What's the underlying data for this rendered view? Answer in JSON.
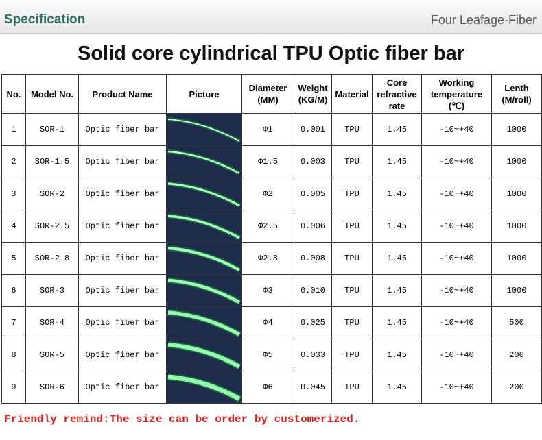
{
  "header": {
    "title": "Specification",
    "brand": "Four  Leafage-Fiber"
  },
  "title": "Solid core cylindrical TPU Optic fiber bar",
  "table": {
    "columns": [
      "No.",
      "Model No.",
      "Product Name",
      "Picture",
      "Diameter\n(MM)",
      "Weight\n(KG/M)",
      "Material",
      "Core\nrefractive\nrate",
      "Working\ntemperature\n(℃)",
      "Lenth\n(M/roll)"
    ],
    "rows": [
      [
        "1",
        "SOR-1",
        "Optic fiber bar",
        "Φ1",
        "0.001",
        "TPU",
        "1.45",
        "-10~+40",
        "1000"
      ],
      [
        "2",
        "SOR-1.5",
        "Optic fiber bar",
        "Φ1.5",
        "0.003",
        "TPU",
        "1.45",
        "-10~+40",
        "1000"
      ],
      [
        "3",
        "SOR-2",
        "Optic fiber bar",
        "Φ2",
        "0.005",
        "TPU",
        "1.45",
        "-10~+40",
        "1000"
      ],
      [
        "4",
        "SOR-2.5",
        "Optic fiber bar",
        "Φ2.5",
        "0.006",
        "TPU",
        "1.45",
        "-10~+40",
        "1000"
      ],
      [
        "5",
        "SOR-2.8",
        "Optic fiber bar",
        "Φ2.8",
        "0.008",
        "TPU",
        "1.45",
        "-10~+40",
        "1000"
      ],
      [
        "6",
        "SOR-3",
        "Optic fiber bar",
        "Φ3",
        "0.010",
        "TPU",
        "1.45",
        "-10~+40",
        "1000"
      ],
      [
        "7",
        "SOR-4",
        "Optic fiber bar",
        "Φ4",
        "0.025",
        "TPU",
        "1.45",
        "-10~+40",
        "500"
      ],
      [
        "8",
        "SOR-5",
        "Optic fiber bar",
        "Φ5",
        "0.033",
        "TPU",
        "1.45",
        "-10~+40",
        "200"
      ],
      [
        "9",
        "SOR-6",
        "Optic fiber bar",
        "Φ6",
        "0.045",
        "TPU",
        "1.45",
        "-10~+40",
        "200"
      ]
    ]
  },
  "note": "Friendly remind:The size can be order by customerized."
}
